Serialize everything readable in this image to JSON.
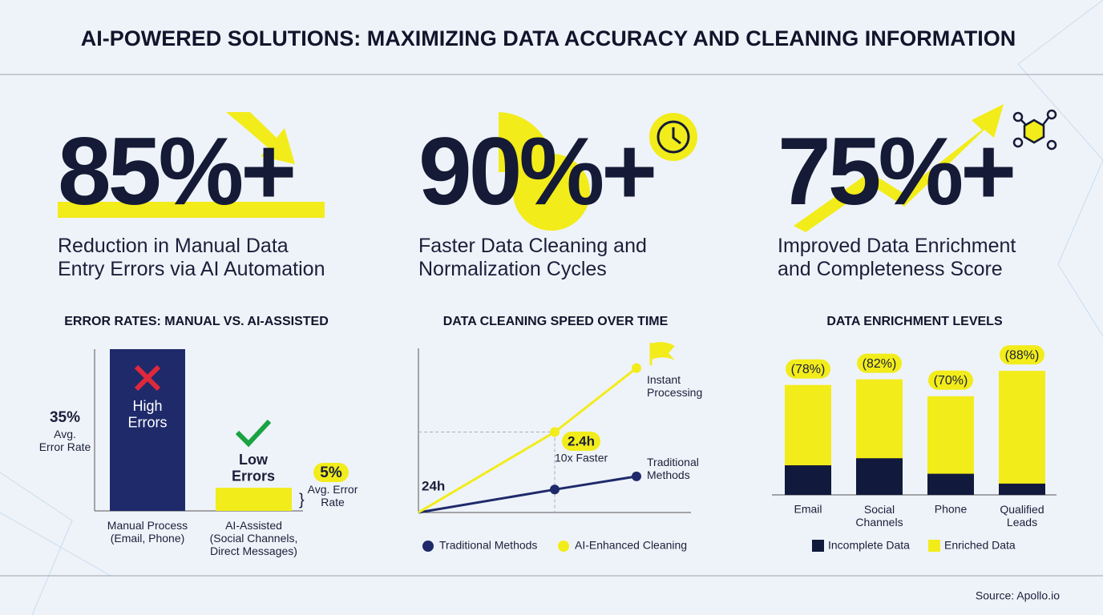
{
  "title": "AI-POWERED SOLUTIONS: MAXIMIZING DATA ACCURACY AND CLEANING INFORMATION",
  "stats": [
    {
      "value": "85%+",
      "label": "Reduction in Manual Data\nEntry Errors via AI Automation"
    },
    {
      "value": "90%+",
      "label": "Faster Data Cleaning and\nNormalization Cycles"
    },
    {
      "value": "75%+",
      "label": "Improved Data Enrichment\nand Completeness Score"
    }
  ],
  "chart_data": [
    {
      "type": "bar",
      "title": "ERROR RATES: MANUAL VS. AI-ASSISTED",
      "categories": [
        "Manual Process\n(Email, Phone)",
        "AI-Assisted\n(Social Channels,\nDirect Messages)"
      ],
      "values": [
        35,
        5
      ],
      "value_labels": [
        "35%",
        "5%"
      ],
      "colors": [
        "#1f2a6b",
        "#f2ec1a"
      ],
      "ylim": [
        0,
        35
      ],
      "annotations": [
        "Avg.\nError Rate",
        "Avg. Error\nRate",
        "High\nErrors",
        "Low\nErrors"
      ]
    },
    {
      "type": "line",
      "title": "DATA CLEANING SPEED OVER TIME",
      "x": [
        0,
        5,
        8
      ],
      "xlim": [
        0,
        10
      ],
      "ylim": [
        0,
        10
      ],
      "series": [
        {
          "name": "Traditional Methods",
          "color": "#1f2a6b",
          "values": [
            0,
            1.4,
            2.2
          ]
        },
        {
          "name": "AI-Enhanced Cleaning",
          "color": "#f2ec1a",
          "values": [
            0,
            4.9,
            8.8
          ]
        }
      ],
      "annotations": [
        "24h",
        "2.4h",
        "10x Faster",
        "Instant\nProcessing",
        "Traditional\nMethods"
      ]
    },
    {
      "type": "bar",
      "mode": "overlay",
      "title": "DATA ENRICHMENT LEVELS",
      "categories": [
        "Email",
        "Social\nChannels",
        "Phone",
        "Qualified\nLeads"
      ],
      "ylim": [
        0,
        100
      ],
      "series": [
        {
          "name": "Incomplete Data",
          "color": "#111a3d",
          "values": [
            21,
            26,
            15,
            8
          ]
        },
        {
          "name": "Enriched Data",
          "color": "#f2ec1a",
          "values": [
            78,
            82,
            70,
            88
          ],
          "value_labels": [
            "(78%)",
            "(82%)",
            "(70%)",
            "(88%)"
          ]
        }
      ]
    }
  ],
  "source": "Source: Apollo.io"
}
